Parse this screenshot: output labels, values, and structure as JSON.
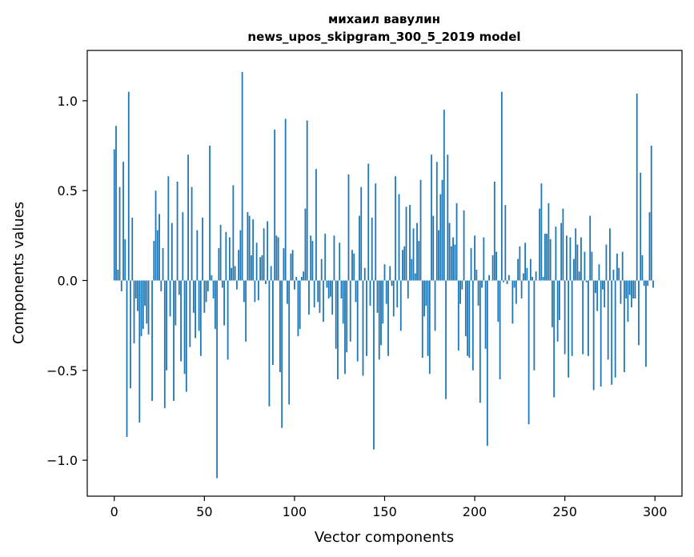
{
  "chart_data": {
    "type": "bar",
    "title_line1": "михаил вавулин",
    "title_line2": "news_upos_skipgram_300_5_2019 model",
    "xlabel": "Vector components",
    "ylabel": "Components values",
    "xlim": [
      -15,
      315
    ],
    "ylim": [
      -1.2,
      1.28
    ],
    "x_ticks": [
      0,
      50,
      100,
      150,
      200,
      250,
      300
    ],
    "x_tick_labels": [
      "0",
      "50",
      "100",
      "150",
      "200",
      "250",
      "300"
    ],
    "y_ticks": [
      -1.0,
      -0.5,
      0.0,
      0.5,
      1.0
    ],
    "y_tick_labels": [
      "−1.0",
      "−0.5",
      "0.0",
      "0.5",
      "1.0"
    ],
    "grid": false,
    "bar_color": "#1f77b4",
    "bar_width": 0.8,
    "x": [
      0,
      1,
      2,
      3,
      4,
      5,
      6,
      7,
      8,
      9,
      10,
      11,
      12,
      13,
      14,
      15,
      16,
      17,
      18,
      19,
      20,
      21,
      22,
      23,
      24,
      25,
      26,
      27,
      28,
      29,
      30,
      31,
      32,
      33,
      34,
      35,
      36,
      37,
      38,
      39,
      40,
      41,
      42,
      43,
      44,
      45,
      46,
      47,
      48,
      49,
      50,
      51,
      52,
      53,
      54,
      55,
      56,
      57,
      58,
      59,
      60,
      61,
      62,
      63,
      64,
      65,
      66,
      67,
      68,
      69,
      70,
      71,
      72,
      73,
      74,
      75,
      76,
      77,
      78,
      79,
      80,
      81,
      82,
      83,
      84,
      85,
      86,
      87,
      88,
      89,
      90,
      91,
      92,
      93,
      94,
      95,
      96,
      97,
      98,
      99,
      100,
      101,
      102,
      103,
      104,
      105,
      106,
      107,
      108,
      109,
      110,
      111,
      112,
      113,
      114,
      115,
      116,
      117,
      118,
      119,
      120,
      121,
      122,
      123,
      124,
      125,
      126,
      127,
      128,
      129,
      130,
      131,
      132,
      133,
      134,
      135,
      136,
      137,
      138,
      139,
      140,
      141,
      142,
      143,
      144,
      145,
      146,
      147,
      148,
      149,
      150,
      151,
      152,
      153,
      154,
      155,
      156,
      157,
      158,
      159,
      160,
      161,
      162,
      163,
      164,
      165,
      166,
      167,
      168,
      169,
      170,
      171,
      172,
      173,
      174,
      175,
      176,
      177,
      178,
      179,
      180,
      181,
      182,
      183,
      184,
      185,
      186,
      187,
      188,
      189,
      190,
      191,
      192,
      193,
      194,
      195,
      196,
      197,
      198,
      199,
      200,
      201,
      202,
      203,
      204,
      205,
      206,
      207,
      208,
      209,
      210,
      211,
      212,
      213,
      214,
      215,
      216,
      217,
      218,
      219,
      220,
      221,
      222,
      223,
      224,
      225,
      226,
      227,
      228,
      229,
      230,
      231,
      232,
      233,
      234,
      235,
      236,
      237,
      238,
      239,
      240,
      241,
      242,
      243,
      244,
      245,
      246,
      247,
      248,
      249,
      250,
      251,
      252,
      253,
      254,
      255,
      256,
      257,
      258,
      259,
      260,
      261,
      262,
      263,
      264,
      265,
      266,
      267,
      268,
      269,
      270,
      271,
      272,
      273,
      274,
      275,
      276,
      277,
      278,
      279,
      280,
      281,
      282,
      283,
      284,
      285,
      286,
      287,
      288,
      289,
      290,
      291,
      292,
      293,
      294,
      295,
      296,
      297,
      298,
      299
    ],
    "values": [
      0.73,
      0.86,
      0.06,
      0.52,
      -0.06,
      0.66,
      0.23,
      -0.87,
      1.05,
      -0.6,
      0.35,
      -0.35,
      -0.1,
      -0.17,
      -0.79,
      -0.31,
      -0.27,
      -0.14,
      -0.24,
      -0.3,
      0.0,
      -0.67,
      0.22,
      0.5,
      0.28,
      0.37,
      -0.06,
      0.18,
      -0.71,
      -0.5,
      0.58,
      -0.2,
      0.32,
      -0.67,
      -0.25,
      0.55,
      -0.08,
      -0.45,
      0.38,
      -0.52,
      -0.62,
      0.7,
      -0.37,
      0.52,
      -0.18,
      -0.32,
      0.28,
      -0.28,
      -0.42,
      0.35,
      -0.18,
      -0.12,
      -0.06,
      0.75,
      0.03,
      -0.1,
      -0.27,
      -1.1,
      0.18,
      0.31,
      -0.04,
      -0.25,
      0.27,
      -0.44,
      0.24,
      0.07,
      0.53,
      0.08,
      -0.05,
      0.17,
      0.28,
      1.16,
      -0.12,
      -0.34,
      0.38,
      0.36,
      0.14,
      0.34,
      -0.12,
      0.21,
      -0.11,
      0.13,
      0.14,
      0.29,
      -0.02,
      0.33,
      -0.7,
      0.08,
      -0.47,
      0.84,
      0.25,
      0.24,
      -0.51,
      -0.82,
      0.18,
      0.9,
      -0.13,
      -0.69,
      0.15,
      0.17,
      -0.05,
      0.02,
      -0.31,
      -0.27,
      0.02,
      0.05,
      0.4,
      0.89,
      -0.19,
      0.25,
      0.22,
      -0.15,
      0.62,
      -0.12,
      -0.18,
      0.12,
      -0.23,
      0.26,
      -0.04,
      -0.1,
      -0.09,
      -0.19,
      0.25,
      -0.38,
      -0.55,
      0.21,
      -0.1,
      -0.24,
      -0.52,
      -0.4,
      0.59,
      -0.34,
      0.17,
      0.15,
      -0.12,
      -0.45,
      0.36,
      0.52,
      -0.53,
      0.07,
      -0.42,
      0.65,
      -0.14,
      0.35,
      -0.94,
      0.54,
      -0.18,
      -0.44,
      -0.36,
      -0.24,
      0.09,
      -0.13,
      -0.42,
      0.08,
      -0.03,
      -0.2,
      0.58,
      -0.15,
      0.48,
      -0.28,
      0.17,
      0.19,
      0.41,
      -0.1,
      0.42,
      0.12,
      0.29,
      0.04,
      0.32,
      0.22,
      0.56,
      -0.43,
      -0.2,
      -0.14,
      -0.42,
      -0.52,
      0.7,
      0.36,
      -0.28,
      0.66,
      0.28,
      0.48,
      0.56,
      0.95,
      -0.66,
      0.7,
      0.32,
      0.19,
      0.24,
      0.2,
      0.43,
      -0.39,
      -0.13,
      -0.05,
      0.39,
      -0.31,
      -0.42,
      -0.43,
      0.18,
      -0.5,
      0.25,
      0.06,
      -0.14,
      -0.68,
      -0.04,
      0.24,
      -0.38,
      -0.92,
      0.03,
      0.0,
      0.14,
      0.55,
      0.16,
      -0.23,
      -0.55,
      1.05,
      -0.01,
      0.42,
      -0.02,
      0.03,
      0.0,
      -0.24,
      -0.04,
      -0.13,
      0.12,
      0.19,
      -0.1,
      0.04,
      0.21,
      0.07,
      -0.8,
      0.12,
      0.02,
      -0.5,
      0.05,
      0.0,
      0.4,
      0.54,
      0.02,
      0.26,
      0.26,
      0.43,
      0.23,
      -0.26,
      -0.65,
      0.3,
      -0.34,
      -0.22,
      0.32,
      0.4,
      -0.41,
      0.25,
      -0.54,
      0.24,
      -0.42,
      0.12,
      0.29,
      0.2,
      0.05,
      0.24,
      -0.41,
      0.16,
      -0.01,
      -0.42,
      0.36,
      0.16,
      -0.61,
      -0.07,
      -0.17,
      0.09,
      -0.59,
      -0.05,
      -0.15,
      0.2,
      -0.44,
      0.29,
      -0.58,
      0.06,
      -0.54,
      0.15,
      0.07,
      -0.13,
      0.16,
      -0.51,
      -0.1,
      -0.23,
      -0.08,
      -0.15,
      -0.1,
      -0.1,
      1.04,
      -0.36,
      0.6,
      0.14,
      -0.03,
      -0.48,
      -0.03,
      0.38,
      0.75,
      -0.04
    ]
  }
}
